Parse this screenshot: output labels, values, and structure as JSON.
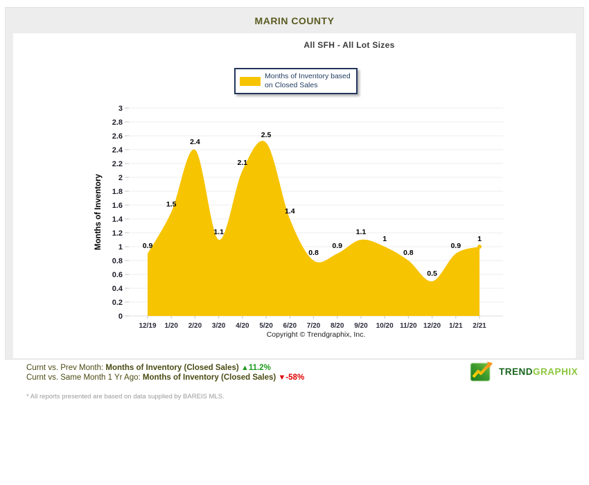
{
  "header": {
    "title": "MARIN COUNTY"
  },
  "chart": {
    "subtitle": "All SFH - All Lot Sizes",
    "legend_label": "Months of Inventory based on Closed Sales",
    "y_axis_title": "Months of Inventory",
    "copyright": "Copyright © Trendgraphix, Inc."
  },
  "chart_data": {
    "type": "area",
    "title": "All SFH - All Lot Sizes",
    "categories": [
      "12/19",
      "1/20",
      "2/20",
      "3/20",
      "4/20",
      "5/20",
      "6/20",
      "7/20",
      "8/20",
      "9/20",
      "10/20",
      "11/20",
      "12/20",
      "1/21",
      "2/21"
    ],
    "values": [
      0.9,
      1.5,
      2.4,
      1.1,
      2.1,
      2.5,
      1.4,
      0.8,
      0.9,
      1.1,
      1,
      0.8,
      0.5,
      0.9,
      1
    ],
    "xlabel": "",
    "ylabel": "Months of Inventory",
    "ylim": [
      0,
      3
    ],
    "ytick_step": 0.2,
    "grid": "horizontal",
    "legend_position": "top",
    "series": [
      {
        "name": "Months of Inventory based on Closed Sales",
        "color": "#f7c402"
      }
    ],
    "data_labels": true,
    "smooth": true
  },
  "footer": {
    "line1": {
      "prefix": "Curnt vs. Prev Month: ",
      "metric": "Months of Inventory (Closed Sales) ",
      "arrow": "▲",
      "value": "11.2%"
    },
    "line2": {
      "prefix": "Curnt vs. Same Month 1 Yr Ago: ",
      "metric": "Months of Inventory (Closed Sales) ",
      "arrow": "▼",
      "value": "-58%"
    },
    "footnote": "* All reports presented are based on data supplied by BAREIS MLS.",
    "logo": {
      "trend": "TREND",
      "graphix": "GRAPHIX"
    }
  },
  "colors": {
    "series": "#f7c402",
    "positive": "#1d9b1d",
    "negative": "#e00000",
    "title": "#5b5b22",
    "stats_text": "#4b4b14",
    "legend_text": "#1f3a5f",
    "logo_dark": "#17641c",
    "logo_light": "#8cc63e"
  }
}
